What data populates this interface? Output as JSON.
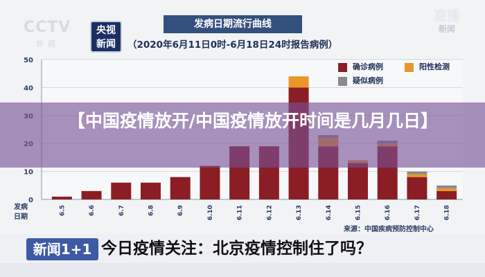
{
  "header": {
    "cctv_logo": "CCTV",
    "cctv_logo_sub": "新闻",
    "channel_badge": "央视\n新闻",
    "live_badge": "直播",
    "live_badge_sub": "新闻"
  },
  "overlay": {
    "title": "【中国疫情放开/中国疫情放开时间是几月几日】"
  },
  "ticker": {
    "logo": "新闻1+1",
    "text": "今日疫情关注：北京疫情控制住了吗？"
  },
  "source": "来源：中国疾病预防控制中心",
  "colors": {
    "confirmed": "#8b1e24",
    "asymptomatic": "#e8962a",
    "suspected": "#8a8a8a"
  },
  "chart_data": {
    "type": "bar",
    "title": "发病日期流行曲线",
    "subtitle": "（2020年6月11日0时-6月18日24时报告病例）",
    "xlabel": "发病日期",
    "ylabel": "",
    "ylim": [
      0,
      50
    ],
    "yticks": [
      0,
      10,
      20,
      30,
      40,
      50
    ],
    "grid": true,
    "legend_position": "top-right",
    "stacked": true,
    "categories": [
      "6.5",
      "6.6",
      "6.7",
      "6.8",
      "6.9",
      "6.10",
      "6.11",
      "6.12",
      "6.13",
      "6.14",
      "6.15",
      "6.16",
      "6.17",
      "6.18"
    ],
    "series": [
      {
        "name": "确诊病例",
        "values": [
          1,
          3,
          6,
          6,
          8,
          12,
          19,
          19,
          40,
          19,
          13,
          19,
          8,
          3
        ]
      },
      {
        "name": "阳性检测",
        "values": [
          0,
          0,
          0,
          0,
          0,
          0,
          0,
          0,
          4,
          3,
          1,
          1,
          1,
          1
        ]
      },
      {
        "name": "疑似病例",
        "values": [
          0,
          0,
          0,
          0,
          0,
          0,
          0,
          0,
          0,
          1,
          0,
          1,
          1,
          1
        ]
      }
    ]
  }
}
